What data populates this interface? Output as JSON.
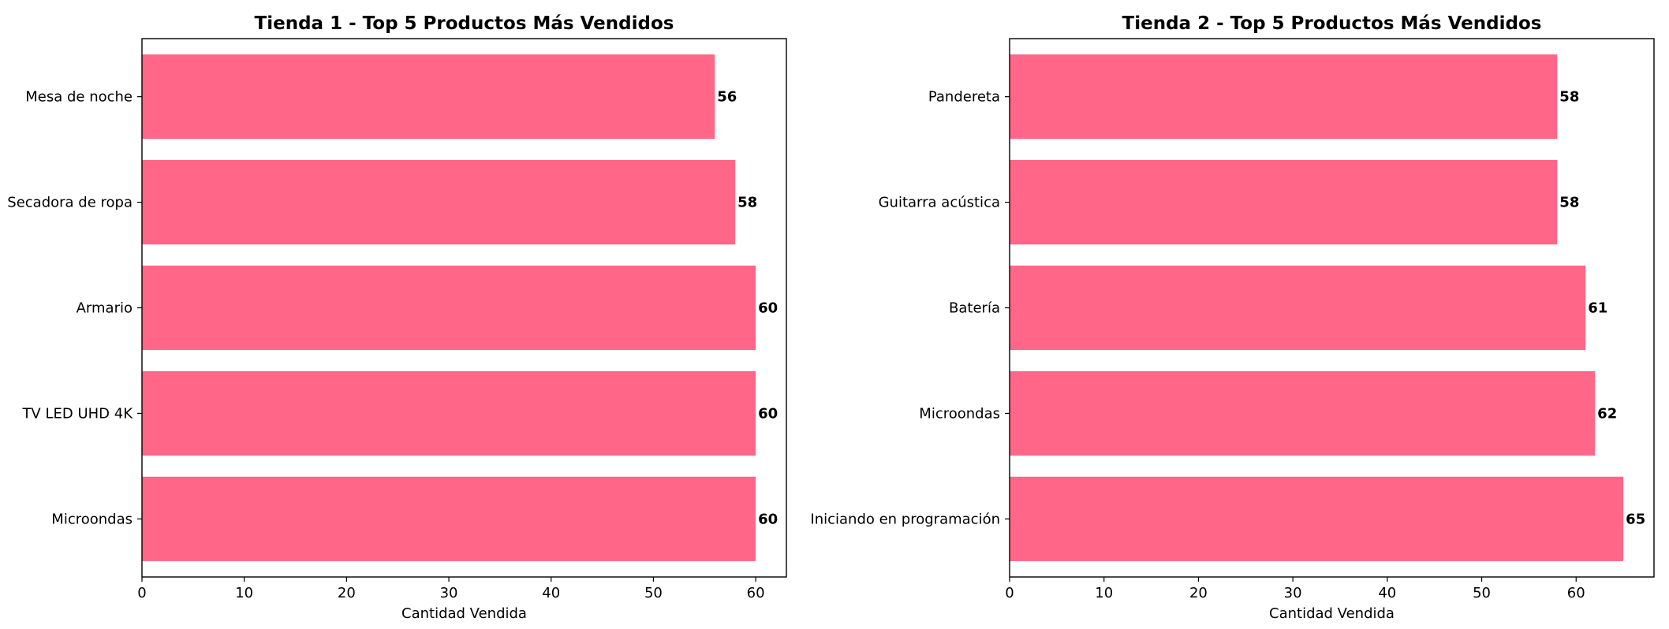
{
  "chart_data": [
    {
      "type": "bar",
      "orientation": "horizontal",
      "title": "Tienda 1 - Top 5 Productos Más Vendidos",
      "xlabel": "Cantidad Vendida",
      "ylabel": "",
      "categories": [
        "Mesa de noche",
        "Secadora de ropa",
        "Armario",
        "TV LED UHD 4K",
        "Microondas"
      ],
      "values": [
        56,
        58,
        60,
        60,
        60
      ],
      "xlim": [
        0,
        63
      ],
      "xticks": [
        0,
        10,
        20,
        30,
        40,
        50,
        60
      ],
      "grid": false,
      "bar_color": "#ff6688",
      "data_labels": true
    },
    {
      "type": "bar",
      "orientation": "horizontal",
      "title": "Tienda 2 - Top 5 Productos Más Vendidos",
      "xlabel": "Cantidad Vendida",
      "ylabel": "",
      "categories": [
        "Pandereta",
        "Guitarra acústica",
        "Batería",
        "Microondas",
        "Iniciando en programación"
      ],
      "values": [
        58,
        58,
        61,
        62,
        65
      ],
      "xlim": [
        0,
        68.25
      ],
      "xticks": [
        0,
        10,
        20,
        30,
        40,
        50,
        60
      ],
      "grid": false,
      "bar_color": "#ff6688",
      "data_labels": true
    }
  ]
}
